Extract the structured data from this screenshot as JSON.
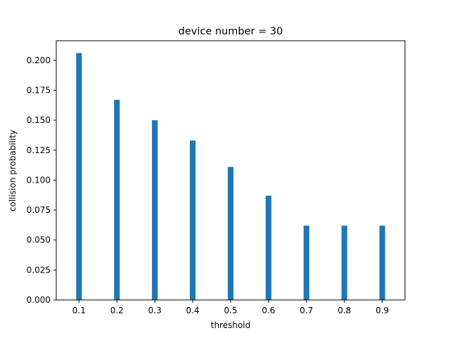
{
  "chart_data": {
    "type": "bar",
    "title": "device number = 30",
    "xlabel": "threshold",
    "ylabel": "collision probability",
    "categories": [
      "0.1",
      "0.2",
      "0.3",
      "0.4",
      "0.5",
      "0.6",
      "0.7",
      "0.8",
      "0.9"
    ],
    "x": [
      0.1,
      0.2,
      0.3,
      0.4,
      0.5,
      0.6,
      0.7,
      0.8,
      0.9
    ],
    "values": [
      0.206,
      0.167,
      0.15,
      0.133,
      0.111,
      0.087,
      0.062,
      0.062,
      0.062
    ],
    "bar_width": 0.015,
    "xlim": [
      0.04,
      0.96
    ],
    "ylim": [
      0,
      0.2163
    ],
    "yticks": [
      0.0,
      0.025,
      0.05,
      0.075,
      0.1,
      0.125,
      0.15,
      0.175,
      0.2
    ],
    "ytick_labels": [
      "0.000",
      "0.025",
      "0.050",
      "0.075",
      "0.100",
      "0.125",
      "0.150",
      "0.175",
      "0.200"
    ],
    "grid": false,
    "legend": "none",
    "colors": {
      "bar": "#1f77b4",
      "axes": "#000000",
      "background": "#ffffff"
    }
  }
}
